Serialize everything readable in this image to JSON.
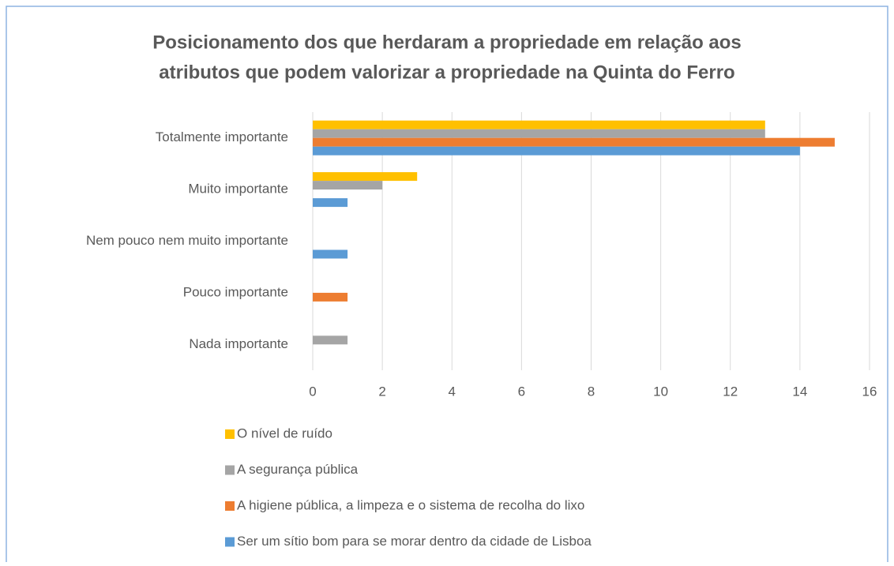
{
  "chart_data": {
    "type": "hbar",
    "title": [
      "Posicionamento dos que herdaram a propriedade em relação aos",
      "atributos que podem valorizar a propriedade na Quinta do Ferro"
    ],
    "categories": [
      "Totalmente importante",
      "Muito importante",
      "Nem pouco nem muito importante",
      "Pouco  importante",
      "Nada importante"
    ],
    "series": [
      {
        "name": "O nível de ruído",
        "color": "#ffc000",
        "values": [
          13,
          3,
          0,
          0,
          0
        ]
      },
      {
        "name": "A segurança pública",
        "color": "#a5a5a5",
        "values": [
          13,
          2,
          0,
          0,
          1
        ]
      },
      {
        "name": "A higiene pública, a limpeza e o sistema de recolha do lixo",
        "color": "#ed7d31",
        "values": [
          15,
          0,
          0,
          1,
          0
        ]
      },
      {
        "name": "Ser um sítio bom para se morar dentro da cidade de Lisboa",
        "color": "#5b9bd5",
        "values": [
          14,
          1,
          1,
          0,
          0
        ]
      }
    ],
    "xlim": [
      0,
      16
    ],
    "xticks": [
      0,
      2,
      4,
      6,
      8,
      10,
      12,
      14,
      16
    ],
    "grid": true,
    "legend": "bottom"
  }
}
